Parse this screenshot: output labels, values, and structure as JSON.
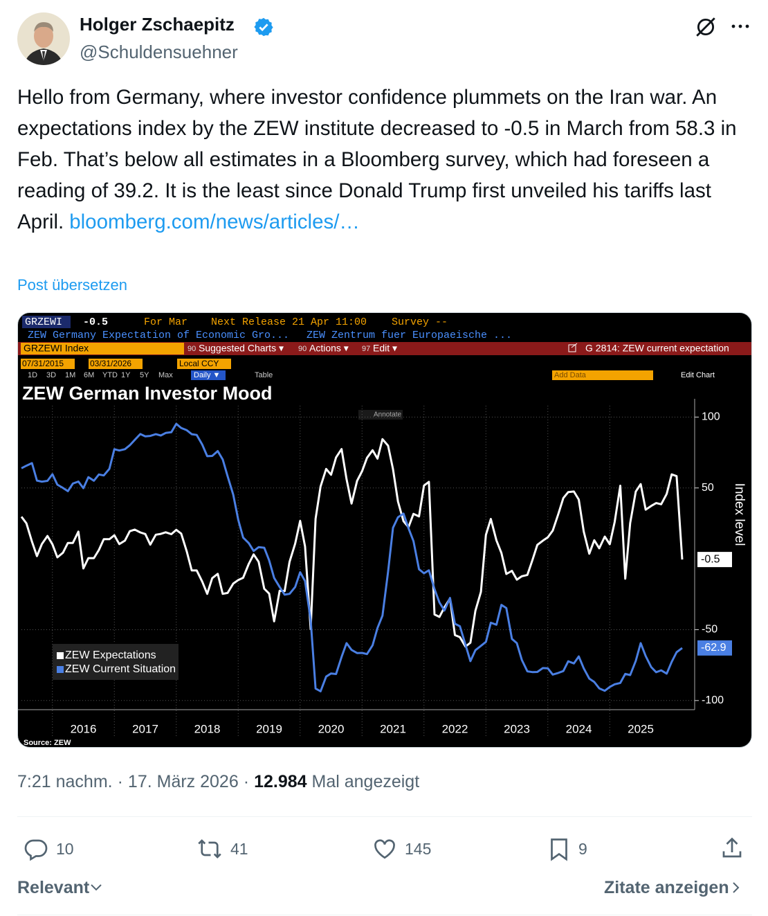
{
  "header": {
    "name": "Holger Zschaepitz",
    "handle": "@Schuldensuehner"
  },
  "post": {
    "text": "Hello from Germany, where investor confidence plummets on the Iran war. An expectations index by the ZEW institute decreased to -0.5 in March from 58.3 in Feb. That’s below all estimates in a Bloomberg survey, which had foreseen a reading of 39.2. It is the least since Donald Trump first unveiled his tariffs last April.",
    "link": "bloomberg.com/news/articles/…",
    "translate": "Post übersetzen"
  },
  "terminal": {
    "ticker": "GRZEWI",
    "last": "-0.5",
    "period": "For Mar",
    "next_release": "Next Release 21 Apr 11:00",
    "survey": "Survey --",
    "desc_left": "ZEW Germany Expectation of Economic Gro...",
    "desc_right": "ZEW Zentrum fuer Europaeische ...",
    "security": "GRZEWI Index",
    "menu": [
      {
        "code": "90",
        "label": "Suggested Charts ▾"
      },
      {
        "code": "90",
        "label": "Actions ▾"
      },
      {
        "code": "97",
        "label": "Edit ▾"
      }
    ],
    "chart_ref": "G 2814: ZEW current expectation",
    "start_date": "07/31/2015",
    "end_date": "03/31/2026",
    "currency": "Local CCY",
    "ranges": [
      "1D",
      "3D",
      "1M",
      "6M",
      "YTD",
      "1Y",
      "5Y",
      "Max"
    ],
    "frequency": "Daily ▼",
    "table": "Table",
    "add_data": "Add Data",
    "edit_chart": "Edit Chart"
  },
  "chart_data": {
    "type": "line",
    "title": "ZEW German Investor Mood",
    "y_axis_label": "Index level",
    "source": "Source: ZEW",
    "annotate": "Annotate",
    "x": [
      2015.5,
      2015.58,
      2015.67,
      2015.75,
      2015.83,
      2015.92,
      2016,
      2016.08,
      2016.17,
      2016.25,
      2016.33,
      2016.42,
      2016.5,
      2016.58,
      2016.67,
      2016.75,
      2016.83,
      2016.92,
      2017,
      2017.08,
      2017.17,
      2017.25,
      2017.33,
      2017.42,
      2017.5,
      2017.58,
      2017.67,
      2017.75,
      2017.83,
      2017.92,
      2018,
      2018.08,
      2018.17,
      2018.25,
      2018.33,
      2018.42,
      2018.5,
      2018.58,
      2018.67,
      2018.75,
      2018.83,
      2018.92,
      2019,
      2019.08,
      2019.17,
      2019.25,
      2019.33,
      2019.42,
      2019.5,
      2019.58,
      2019.67,
      2019.75,
      2019.83,
      2019.92,
      2020,
      2020.08,
      2020.17,
      2020.25,
      2020.33,
      2020.42,
      2020.5,
      2020.58,
      2020.67,
      2020.75,
      2020.83,
      2020.92,
      2021,
      2021.08,
      2021.17,
      2021.25,
      2021.33,
      2021.42,
      2021.5,
      2021.58,
      2021.67,
      2021.75,
      2021.83,
      2021.92,
      2022,
      2022.08,
      2022.17,
      2022.25,
      2022.33,
      2022.42,
      2022.5,
      2022.58,
      2022.67,
      2022.75,
      2022.83,
      2022.92,
      2023,
      2023.08,
      2023.17,
      2023.25,
      2023.33,
      2023.42,
      2023.5,
      2023.58,
      2023.67,
      2023.75,
      2023.83,
      2023.92,
      2024,
      2024.08,
      2024.17,
      2024.25,
      2024.33,
      2024.42,
      2024.5,
      2024.58,
      2024.67,
      2024.75,
      2024.83,
      2024.92,
      2025,
      2025.08,
      2025.17,
      2025.25,
      2025.33,
      2025.42,
      2025.5,
      2025.58,
      2025.67,
      2025.75,
      2025.83,
      2025.92,
      2026,
      2026.08,
      2026.17
    ],
    "xlim": [
      2015.5,
      2026.17
    ],
    "xticks": [
      {
        "value": 2016.5,
        "label": "2016"
      },
      {
        "value": 2017.5,
        "label": "2017"
      },
      {
        "value": 2018.5,
        "label": "2018"
      },
      {
        "value": 2019.5,
        "label": "2019"
      },
      {
        "value": 2020.5,
        "label": "2020"
      },
      {
        "value": 2021.5,
        "label": "2021"
      },
      {
        "value": 2022.5,
        "label": "2022"
      },
      {
        "value": 2023.5,
        "label": "2023"
      },
      {
        "value": 2024.5,
        "label": "2024"
      },
      {
        "value": 2025.5,
        "label": "2025"
      }
    ],
    "ylim": [
      -104,
      108
    ],
    "yticks": [
      100,
      50,
      -50,
      -100
    ],
    "grid": true,
    "legend": "lower left",
    "series": [
      {
        "name": "ZEW Expectations",
        "color": "#ffffff",
        "values": [
          29.7,
          25,
          12.1,
          1.9,
          10.4,
          16.1,
          10.2,
          1.0,
          4.3,
          11.2,
          11.2,
          19.2,
          -6.8,
          0.5,
          0.5,
          6.2,
          13.8,
          13.8,
          16.6,
          10.4,
          12.8,
          19.5,
          20.6,
          18.6,
          17.5,
          10.0,
          17.0,
          17.6,
          18.7,
          17.4,
          20.4,
          17.8,
          5.1,
          -8.2,
          -8.2,
          -16.1,
          -24.7,
          -13.7,
          -10.6,
          -24.7,
          -24.1,
          -17.5,
          -15.0,
          -13.4,
          -3.6,
          3.1,
          -2.1,
          -21.1,
          -24.5,
          -44.1,
          -22.5,
          -22.8,
          -2.1,
          10.7,
          26.7,
          8.7,
          -49.5,
          28.2,
          51.0,
          63.4,
          59.3,
          71.5,
          77.4,
          56.1,
          39.0,
          55.0,
          61.8,
          71.2,
          76.6,
          70.7,
          84.4,
          79.8,
          63.3,
          40.4,
          26.5,
          22.3,
          31.7,
          29.9,
          51.7,
          54.3,
          -39.3,
          -41.0,
          -34.3,
          -28.0,
          -53.8,
          -55.3,
          -61.9,
          -59.2,
          -36.7,
          -23.3,
          16.9,
          28.1,
          13.0,
          4.1,
          -10.7,
          -8.5,
          -14.7,
          -12.3,
          -11.4,
          -1.1,
          9.8,
          12.8,
          15.2,
          19.9,
          31.7,
          42.9,
          47.1,
          47.5,
          41.8,
          19.2,
          3.6,
          13.1,
          7.4,
          15.7,
          10.3,
          26.0,
          51.6,
          -14.0,
          25.2,
          47.5,
          52.7,
          34.7,
          37.3,
          39.3,
          38.5,
          45.8,
          59.6,
          58.3,
          -0.5
        ]
      },
      {
        "name": "ZEW Current Situation",
        "color": "#4a7fe3",
        "values": [
          63.9,
          65.7,
          67.5,
          55.2,
          54.4,
          55.0,
          59.7,
          52.3,
          50.0,
          47.7,
          53.1,
          54.5,
          49.8,
          57.6,
          55.1,
          59.5,
          58.8,
          63.5,
          77.3,
          76.4,
          77.3,
          80.1,
          83.9,
          88.0,
          86.4,
          86.7,
          87.9,
          87.0,
          88.8,
          89.3,
          95.2,
          92.3,
          90.7,
          87.9,
          87.4,
          80.6,
          72.4,
          72.6,
          76.0,
          70.1,
          58.2,
          45.3,
          27.6,
          15.0,
          11.1,
          5.5,
          8.2,
          7.8,
          -1.1,
          -13.5,
          -19.9,
          -25.3,
          -24.7,
          -19.9,
          -9.5,
          -15.7,
          -43.1,
          -91.5,
          -93.5,
          -83.1,
          -80.9,
          -81.3,
          -69.2,
          -59.5,
          -64.3,
          -66.5,
          -66.4,
          -67.2,
          -61.0,
          -48.8,
          -40.1,
          -9.1,
          21.9,
          29.3,
          31.9,
          21.6,
          12.5,
          -7.4,
          -10.2,
          -8.1,
          -21.4,
          -30.8,
          -36.5,
          -27.6,
          -45.8,
          -47.6,
          -60.5,
          -72.2,
          -64.5,
          -61.4,
          -58.6,
          -45.1,
          -46.5,
          -32.5,
          -34.8,
          -56.5,
          -59.5,
          -71.3,
          -79.4,
          -79.9,
          -79.8,
          -77.1,
          -77.3,
          -81.7,
          -80.5,
          -79.2,
          -72.3,
          -73.8,
          -68.9,
          -77.3,
          -84.5,
          -86.9,
          -91.4,
          -93.1,
          -90.4,
          -88.5,
          -87.6,
          -81.2,
          -82.0,
          -72.0,
          -59.5,
          -68.6,
          -76.4,
          -80.0,
          -78.7,
          -81.0,
          -72.7,
          -65.9,
          -62.9
        ]
      }
    ]
  },
  "meta": {
    "time": "7:21 nachm.",
    "separator": "·",
    "date": "17. März 2026",
    "views": "12.984",
    "views_label": "Mal angezeigt"
  },
  "actions": {
    "replies": 10,
    "reposts": 41,
    "likes": 145,
    "bookmarks": 9
  },
  "footer": {
    "sort": "Relevant",
    "quotes": "Zitate anzeigen"
  }
}
